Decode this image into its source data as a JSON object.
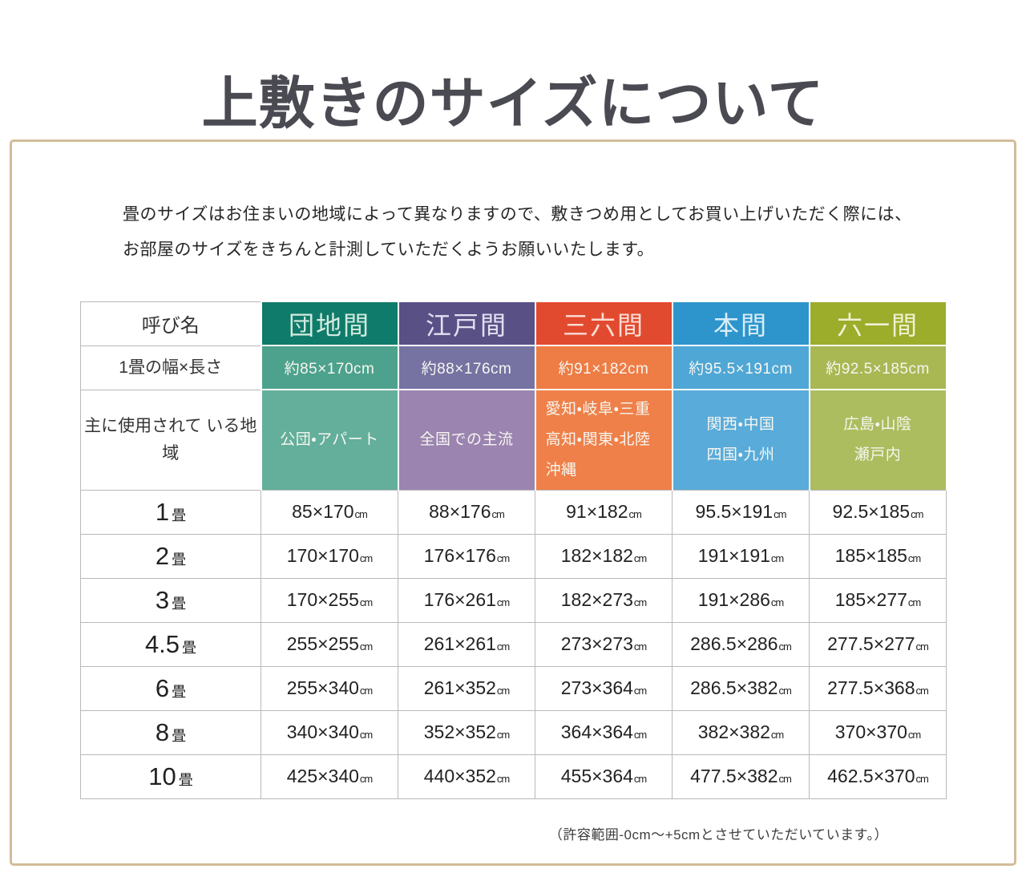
{
  "page": {
    "title": "上敷きのサイズについて",
    "intro": [
      "畳のサイズはお住まいの地域によって異なりますので、敷きつめ用としてお買い上げいただく際には、",
      "お部屋のサイズをきちんと計測していただくようお願いいたします。"
    ],
    "footnote": "（許容範囲-0cm～+5cmとさせていただいています。）"
  },
  "table": {
    "corner_label": "呼び名",
    "size_row_label": "1畳の幅×長さ",
    "region_row_label": [
      "主に使用されて",
      "いる地域"
    ],
    "unit": "cm",
    "tatami_suffix": "畳",
    "columns": [
      {
        "id": "danchima",
        "label": "団地間",
        "size": "約85×170cm",
        "regions": [
          "公団・アパート"
        ],
        "colors": {
          "header": "#0f7b6a",
          "size": "#4da28d",
          "region": "#63af9b",
          "headerText": "#d2eadf"
        }
      },
      {
        "id": "edoma",
        "label": "江戸間",
        "size": "約88×176cm",
        "regions": [
          "全国での主流"
        ],
        "colors": {
          "header": "#595086",
          "size": "#7673a3",
          "region": "#9b84b0",
          "headerText": "#e3dff0"
        }
      },
      {
        "id": "sanrokuma",
        "label": "三六間",
        "size": "約91×182cm",
        "regions": [
          "愛知・岐阜・三重",
          "高知・関東・北陸",
          "沖縄"
        ],
        "colors": {
          "header": "#e24a2f",
          "size": "#ee7c45",
          "region": "#ef8049",
          "headerText": "#fbdcd2"
        }
      },
      {
        "id": "honma",
        "label": "本間",
        "size": "約95.5×191cm",
        "regions": [
          "関西・中国",
          "四国・九州"
        ],
        "colors": {
          "header": "#2d95cb",
          "size": "#4fa7d6",
          "region": "#59abd9",
          "headerText": "#d8ecf8"
        }
      },
      {
        "id": "rokuichima",
        "label": "六一間",
        "size": "約92.5×185cm",
        "regions": [
          "広島・山陰",
          "瀬戸内"
        ],
        "colors": {
          "header": "#9cac2b",
          "size": "#a9b853",
          "region": "#abbd5e",
          "headerText": "#eef2d3"
        }
      }
    ],
    "rows": [
      {
        "label": "1",
        "values": [
          "85×170",
          "88×176",
          "91×182",
          "95.5×191",
          "92.5×185"
        ]
      },
      {
        "label": "2",
        "values": [
          "170×170",
          "176×176",
          "182×182",
          "191×191",
          "185×185"
        ]
      },
      {
        "label": "3",
        "values": [
          "170×255",
          "176×261",
          "182×273",
          "191×286",
          "185×277"
        ]
      },
      {
        "label": "4.5",
        "values": [
          "255×255",
          "261×261",
          "273×273",
          "286.5×286",
          "277.5×277"
        ]
      },
      {
        "label": "6",
        "values": [
          "255×340",
          "261×352",
          "273×364",
          "286.5×382",
          "277.5×368"
        ]
      },
      {
        "label": "8",
        "values": [
          "340×340",
          "352×352",
          "364×364",
          "382×382",
          "370×370"
        ]
      },
      {
        "label": "10",
        "values": [
          "425×340",
          "440×352",
          "455×364",
          "477.5×382",
          "462.5×370"
        ]
      }
    ]
  }
}
